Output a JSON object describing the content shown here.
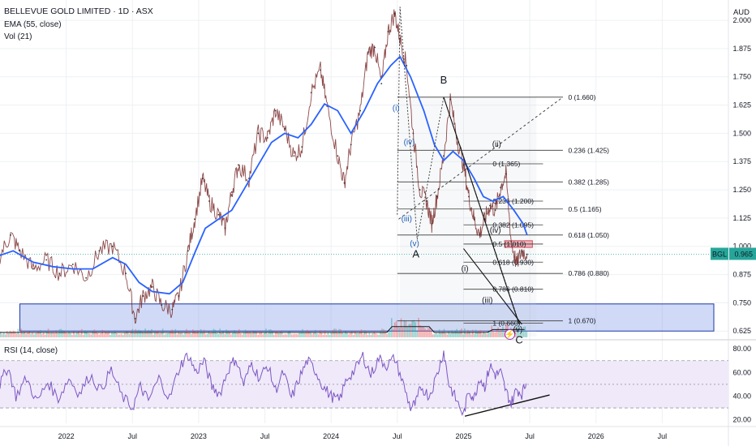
{
  "header": {
    "title": "BELLEVUE GOLD LIMITED · 1D · ASX",
    "ema": "EMA (55, close)",
    "vol": "Vol (21)",
    "rsi": "RSI (14, close)",
    "currency": "AUD"
  },
  "chart_data": [
    {
      "type": "line",
      "title": "BELLEVUE GOLD LIMITED · 1D · ASX",
      "ylabel": "AUD",
      "ylim": [
        0.59,
        2.09
      ],
      "yticks": [
        0.625,
        0.75,
        0.875,
        1.0,
        1.125,
        1.25,
        1.375,
        1.5,
        1.625,
        1.75,
        1.875,
        2.0
      ],
      "ytick_labels": [
        "0.625",
        "0.750",
        "0.875",
        "1.000",
        "1.125",
        "1.250",
        "1.375",
        "1.500",
        "1.625",
        "1.750",
        "1.875",
        "2.000"
      ],
      "xlim": [
        2021.5,
        2027.0
      ],
      "xticks": [
        2022.0,
        2022.5,
        2023.0,
        2023.5,
        2024.0,
        2024.5,
        2025.0,
        2025.5,
        2026.0,
        2026.5
      ],
      "xtick_labels": [
        "2022",
        "Jul",
        "2023",
        "Jul",
        "2024",
        "Jul",
        "2025",
        "Jul",
        "2026",
        "Jul"
      ],
      "last_price": {
        "symbol": "BGL",
        "value": 0.965
      },
      "price": [
        [
          2021.5,
          0.96
        ],
        [
          2021.58,
          1.05
        ],
        [
          2021.65,
          0.98
        ],
        [
          2021.75,
          0.9
        ],
        [
          2021.85,
          0.94
        ],
        [
          2021.95,
          0.88
        ],
        [
          2022.05,
          0.92
        ],
        [
          2022.15,
          0.86
        ],
        [
          2022.25,
          0.98
        ],
        [
          2022.35,
          1.0
        ],
        [
          2022.45,
          0.88
        ],
        [
          2022.52,
          0.68
        ],
        [
          2022.58,
          0.78
        ],
        [
          2022.65,
          0.82
        ],
        [
          2022.72,
          0.74
        ],
        [
          2022.8,
          0.72
        ],
        [
          2022.85,
          0.78
        ],
        [
          2022.92,
          0.98
        ],
        [
          2022.97,
          1.12
        ],
        [
          2023.03,
          1.3
        ],
        [
          2023.08,
          1.2
        ],
        [
          2023.15,
          1.14
        ],
        [
          2023.2,
          1.08
        ],
        [
          2023.25,
          1.24
        ],
        [
          2023.3,
          1.36
        ],
        [
          2023.38,
          1.3
        ],
        [
          2023.45,
          1.5
        ],
        [
          2023.52,
          1.48
        ],
        [
          2023.58,
          1.6
        ],
        [
          2023.65,
          1.52
        ],
        [
          2023.72,
          1.4
        ],
        [
          2023.78,
          1.44
        ],
        [
          2023.85,
          1.68
        ],
        [
          2023.92,
          1.78
        ],
        [
          2023.97,
          1.62
        ],
        [
          2024.05,
          1.4
        ],
        [
          2024.1,
          1.28
        ],
        [
          2024.15,
          1.45
        ],
        [
          2024.22,
          1.6
        ],
        [
          2024.28,
          1.86
        ],
        [
          2024.33,
          1.88
        ],
        [
          2024.38,
          1.72
        ],
        [
          2024.43,
          1.95
        ],
        [
          2024.48,
          2.03
        ],
        [
          2024.52,
          1.92
        ],
        [
          2024.57,
          1.8
        ],
        [
          2024.62,
          1.5
        ],
        [
          2024.67,
          1.25
        ],
        [
          2024.72,
          1.2
        ],
        [
          2024.76,
          1.1
        ],
        [
          2024.8,
          1.22
        ],
        [
          2024.85,
          1.4
        ],
        [
          2024.9,
          1.65
        ],
        [
          2024.95,
          1.48
        ],
        [
          2025.0,
          1.36
        ],
        [
          2025.04,
          1.22
        ],
        [
          2025.08,
          1.12
        ],
        [
          2025.12,
          1.05
        ],
        [
          2025.16,
          1.12
        ],
        [
          2025.2,
          1.18
        ],
        [
          2025.24,
          1.16
        ],
        [
          2025.28,
          1.26
        ],
        [
          2025.32,
          1.32
        ],
        [
          2025.36,
          1.02
        ],
        [
          2025.4,
          0.92
        ],
        [
          2025.44,
          0.98
        ],
        [
          2025.48,
          0.965
        ]
      ],
      "ema_55": [
        [
          2021.5,
          0.96
        ],
        [
          2021.6,
          0.98
        ],
        [
          2021.75,
          0.93
        ],
        [
          2021.9,
          0.91
        ],
        [
          2022.05,
          0.9
        ],
        [
          2022.2,
          0.9
        ],
        [
          2022.35,
          0.95
        ],
        [
          2022.45,
          0.92
        ],
        [
          2022.55,
          0.84
        ],
        [
          2022.65,
          0.8
        ],
        [
          2022.78,
          0.79
        ],
        [
          2022.88,
          0.84
        ],
        [
          2022.97,
          0.97
        ],
        [
          2023.05,
          1.08
        ],
        [
          2023.15,
          1.12
        ],
        [
          2023.25,
          1.16
        ],
        [
          2023.35,
          1.26
        ],
        [
          2023.45,
          1.36
        ],
        [
          2023.55,
          1.46
        ],
        [
          2023.65,
          1.5
        ],
        [
          2023.75,
          1.48
        ],
        [
          2023.85,
          1.54
        ],
        [
          2023.95,
          1.63
        ],
        [
          2024.05,
          1.6
        ],
        [
          2024.15,
          1.5
        ],
        [
          2024.25,
          1.6
        ],
        [
          2024.35,
          1.72
        ],
        [
          2024.45,
          1.8
        ],
        [
          2024.52,
          1.84
        ],
        [
          2024.6,
          1.75
        ],
        [
          2024.7,
          1.6
        ],
        [
          2024.78,
          1.45
        ],
        [
          2024.85,
          1.38
        ],
        [
          2024.92,
          1.42
        ],
        [
          2025.0,
          1.38
        ],
        [
          2025.08,
          1.3
        ],
        [
          2025.15,
          1.22
        ],
        [
          2025.22,
          1.2
        ],
        [
          2025.3,
          1.22
        ],
        [
          2025.38,
          1.16
        ],
        [
          2025.45,
          1.1
        ],
        [
          2025.48,
          1.05
        ]
      ],
      "support_zone": {
        "low": 0.625,
        "high": 0.745
      },
      "resistance_box": {
        "low": 0.995,
        "high": 1.025
      },
      "fibonacci_sets": [
        {
          "levels": [
            {
              "label": "0 (1.660)",
              "value": 1.66
            },
            {
              "label": "0.236 (1.425)",
              "value": 1.425
            },
            {
              "label": "0.382 (1.285)",
              "value": 1.285
            },
            {
              "label": "0.5 (1.165)",
              "value": 1.165
            },
            {
              "label": "0.618 (1.050)",
              "value": 1.05
            },
            {
              "label": "0.786 (0.880)",
              "value": 0.88
            },
            {
              "label": "1 (0.670)",
              "value": 0.67
            }
          ]
        },
        {
          "levels": [
            {
              "label": "0 (1.365)",
              "value": 1.365
            },
            {
              "label": "0.236 (1.200)",
              "value": 1.2
            },
            {
              "label": "0.382 (1.095)",
              "value": 1.095
            },
            {
              "label": "0.5 (1.010)",
              "value": 1.01
            },
            {
              "label": "0.618 (0.930)",
              "value": 0.93
            },
            {
              "label": "0.786 (0.810)",
              "value": 0.81
            },
            {
              "label": "1 (0.660)",
              "value": 0.66
            }
          ]
        }
      ],
      "wave_labels": [
        {
          "text": "(ii)",
          "x": 2024.51,
          "y": 2.11,
          "color": "blue"
        },
        {
          "text": "(i)",
          "x": 2024.49,
          "y": 1.6,
          "color": "blue"
        },
        {
          "text": "(iv)",
          "x": 2024.59,
          "y": 1.45,
          "color": "blue"
        },
        {
          "text": "(iii)",
          "x": 2024.57,
          "y": 1.11,
          "color": "blue"
        },
        {
          "text": "(v)",
          "x": 2024.63,
          "y": 1.0,
          "color": "blue"
        },
        {
          "text": "A",
          "x": 2024.64,
          "y": 0.95,
          "color": "black"
        },
        {
          "text": "B",
          "x": 2024.85,
          "y": 1.72,
          "color": "black"
        },
        {
          "text": "(ii)",
          "x": 2025.25,
          "y": 1.44,
          "color": "black"
        },
        {
          "text": "(i)",
          "x": 2025.01,
          "y": 0.89,
          "color": "black"
        },
        {
          "text": "(iii)",
          "x": 2025.18,
          "y": 0.75,
          "color": "black"
        },
        {
          "text": "(iv)",
          "x": 2025.24,
          "y": 1.06,
          "color": "black"
        },
        {
          "text": "(v)",
          "x": 2025.41,
          "y": 0.62,
          "color": "black"
        },
        {
          "text": "C",
          "x": 2025.42,
          "y": 0.57,
          "color": "black"
        }
      ]
    },
    {
      "type": "line",
      "title": "RSI (14, close)",
      "ylim": [
        17,
        87
      ],
      "yticks": [
        20,
        40,
        60,
        80
      ],
      "ytick_labels": [
        "20.00",
        "40.00",
        "60.00",
        "80.00"
      ],
      "bands": [
        30,
        50,
        70
      ],
      "rsi": [
        [
          2021.5,
          50
        ],
        [
          2021.56,
          65
        ],
        [
          2021.62,
          40
        ],
        [
          2021.7,
          55
        ],
        [
          2021.78,
          35
        ],
        [
          2021.86,
          52
        ],
        [
          2021.94,
          38
        ],
        [
          2022.02,
          55
        ],
        [
          2022.1,
          42
        ],
        [
          2022.18,
          58
        ],
        [
          2022.26,
          45
        ],
        [
          2022.34,
          62
        ],
        [
          2022.42,
          40
        ],
        [
          2022.5,
          30
        ],
        [
          2022.56,
          48
        ],
        [
          2022.62,
          36
        ],
        [
          2022.7,
          55
        ],
        [
          2022.78,
          38
        ],
        [
          2022.86,
          66
        ],
        [
          2022.92,
          75
        ],
        [
          2022.98,
          60
        ],
        [
          2023.04,
          70
        ],
        [
          2023.1,
          48
        ],
        [
          2023.16,
          42
        ],
        [
          2023.22,
          62
        ],
        [
          2023.28,
          72
        ],
        [
          2023.34,
          50
        ],
        [
          2023.4,
          68
        ],
        [
          2023.46,
          55
        ],
        [
          2023.52,
          66
        ],
        [
          2023.58,
          45
        ],
        [
          2023.64,
          60
        ],
        [
          2023.7,
          38
        ],
        [
          2023.76,
          55
        ],
        [
          2023.82,
          70
        ],
        [
          2023.88,
          62
        ],
        [
          2023.94,
          48
        ],
        [
          2024.0,
          40
        ],
        [
          2024.06,
          36
        ],
        [
          2024.12,
          55
        ],
        [
          2024.18,
          62
        ],
        [
          2024.24,
          74
        ],
        [
          2024.3,
          58
        ],
        [
          2024.36,
          72
        ],
        [
          2024.42,
          66
        ],
        [
          2024.48,
          72
        ],
        [
          2024.54,
          52
        ],
        [
          2024.6,
          30
        ],
        [
          2024.64,
          34
        ],
        [
          2024.68,
          48
        ],
        [
          2024.74,
          40
        ],
        [
          2024.8,
          58
        ],
        [
          2024.85,
          78
        ],
        [
          2024.89,
          50
        ],
        [
          2024.94,
          38
        ],
        [
          2025.0,
          24
        ],
        [
          2025.04,
          45
        ],
        [
          2025.08,
          38
        ],
        [
          2025.12,
          56
        ],
        [
          2025.16,
          48
        ],
        [
          2025.2,
          66
        ],
        [
          2025.24,
          58
        ],
        [
          2025.28,
          60
        ],
        [
          2025.32,
          44
        ],
        [
          2025.36,
          34
        ],
        [
          2025.4,
          46
        ],
        [
          2025.44,
          42
        ],
        [
          2025.48,
          53
        ]
      ],
      "trendline": [
        [
          2025.01,
          23
        ],
        [
          2025.65,
          41
        ]
      ]
    }
  ]
}
